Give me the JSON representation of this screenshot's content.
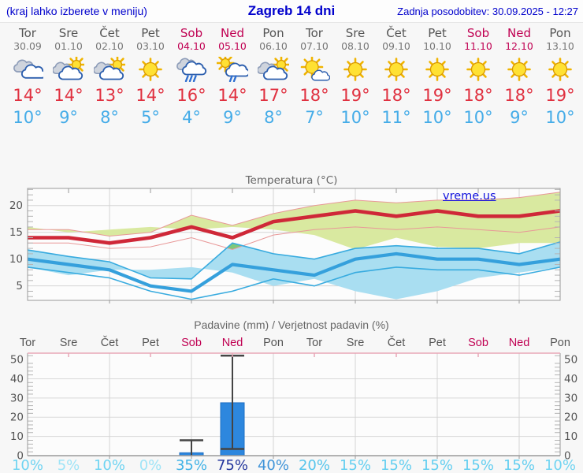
{
  "header": {
    "left_note": "(kraj lahko izberete v meniju)",
    "title": "Zagreb 14 dni",
    "updated": "Zadnja posodobitev: 30.09.2025 - 12:27"
  },
  "colors": {
    "header_blue": "#0000cc",
    "weekday_text": "#555555",
    "date_text": "#777777",
    "weekend_text": "#c00052",
    "tmax_text": "#e03140",
    "tmin_text": "#45ace8",
    "max_line": "#cf2838",
    "max_band": "#d9e9a0",
    "max_band_edge": "#e89898",
    "min_line": "#35a0dc",
    "min_band": "#a9def1",
    "min_band_edge": "#38abdf",
    "band_overlap": "#7cc87c",
    "bar_fill": "#2d87de",
    "bar_edge": "#1d6fc4",
    "whisker": "#444444",
    "grid": "#d4d4d4",
    "axis": "#9a9a9a",
    "precip_top_border": "#e8a6b6",
    "watermark_blue": "#1111dd"
  },
  "strip": {
    "days": [
      {
        "name": "Tor",
        "date": "30.09",
        "weekend": false,
        "icon": "cloudy",
        "tmax": "14°",
        "tmin": "10°"
      },
      {
        "name": "Sre",
        "date": "01.10",
        "weekend": false,
        "icon": "sun-cloud",
        "tmax": "14°",
        "tmin": "9°"
      },
      {
        "name": "Čet",
        "date": "02.10",
        "weekend": false,
        "icon": "sun-cloud",
        "tmax": "13°",
        "tmin": "8°"
      },
      {
        "name": "Pet",
        "date": "03.10",
        "weekend": false,
        "icon": "sunny",
        "tmax": "14°",
        "tmin": "5°"
      },
      {
        "name": "Sob",
        "date": "04.10",
        "weekend": true,
        "icon": "rain",
        "tmax": "16°",
        "tmin": "4°"
      },
      {
        "name": "Ned",
        "date": "05.10",
        "weekend": true,
        "icon": "sun-rain",
        "tmax": "14°",
        "tmin": "9°"
      },
      {
        "name": "Pon",
        "date": "06.10",
        "weekend": false,
        "icon": "sun-cloud",
        "tmax": "17°",
        "tmin": "8°"
      },
      {
        "name": "Tor",
        "date": "07.10",
        "weekend": false,
        "icon": "sun-small-cloud",
        "tmax": "18°",
        "tmin": "7°"
      },
      {
        "name": "Sre",
        "date": "08.10",
        "weekend": false,
        "icon": "sunny",
        "tmax": "19°",
        "tmin": "10°"
      },
      {
        "name": "Čet",
        "date": "09.10",
        "weekend": false,
        "icon": "sunny",
        "tmax": "18°",
        "tmin": "11°"
      },
      {
        "name": "Pet",
        "date": "10.10",
        "weekend": false,
        "icon": "sunny",
        "tmax": "19°",
        "tmin": "10°"
      },
      {
        "name": "Sob",
        "date": "11.10",
        "weekend": true,
        "icon": "sunny",
        "tmax": "18°",
        "tmin": "10°"
      },
      {
        "name": "Ned",
        "date": "12.10",
        "weekend": true,
        "icon": "sunny",
        "tmax": "18°",
        "tmin": "9°"
      },
      {
        "name": "Pon",
        "date": "13.10",
        "weekend": false,
        "icon": "sunny",
        "tmax": "19°",
        "tmin": "10°"
      }
    ]
  },
  "chart_data": [
    {
      "type": "area",
      "title": "Temperatura (°C)",
      "watermark": "vreme.us",
      "x_labels": [
        "Tor",
        "Sre",
        "Čet",
        "Pet",
        "Sob",
        "Ned",
        "Pon",
        "Tor",
        "Sre",
        "Čet",
        "Pet",
        "Sob",
        "Ned",
        "Pon"
      ],
      "ylim": [
        2.3,
        23.2
      ],
      "yticks": [
        5,
        10,
        15,
        20
      ],
      "grid": true,
      "series": [
        {
          "name": "tmax",
          "values": [
            14,
            14,
            13,
            14,
            16,
            14,
            17,
            18,
            19,
            18,
            19,
            18,
            18,
            19
          ]
        },
        {
          "name": "tmax_range_high",
          "values": [
            15.5,
            15.5,
            14.3,
            15,
            18.2,
            16.3,
            18.5,
            20,
            21,
            20.5,
            21,
            21,
            21.5,
            22.5
          ]
        },
        {
          "name": "tmax_range_low",
          "values": [
            13,
            13,
            12,
            12.3,
            14,
            11.8,
            14.5,
            15.5,
            16,
            15.5,
            16,
            15.5,
            15,
            16
          ]
        },
        {
          "name": "tmin",
          "values": [
            10,
            9,
            8,
            5,
            4,
            9,
            8,
            7,
            10,
            11,
            10,
            10,
            9,
            10
          ]
        },
        {
          "name": "tmin_range_high",
          "values": [
            11.7,
            10.5,
            9.5,
            6.5,
            6.3,
            13,
            11,
            10,
            12,
            12.5,
            12,
            12,
            11,
            13.2
          ]
        },
        {
          "name": "tmin_range_low",
          "values": [
            8.5,
            7.5,
            6.5,
            4,
            2.5,
            4,
            6.3,
            5,
            7.5,
            8.5,
            8,
            8,
            7,
            8.5
          ]
        }
      ]
    },
    {
      "type": "bar",
      "title": "Padavine (mm) / Verjetnost padavin (%)",
      "categories": [
        "Tor",
        "Sre",
        "Čet",
        "Pet",
        "Sob",
        "Ned",
        "Pon",
        "Tor",
        "Sre",
        "Čet",
        "Pet",
        "Sob",
        "Ned",
        "Pon"
      ],
      "values": [
        0,
        0,
        0,
        0,
        1.5,
        27.5,
        0,
        0,
        0,
        0,
        0,
        0,
        0,
        0
      ],
      "whisker_low": [
        0,
        0,
        0,
        0,
        0,
        3.5,
        0,
        0,
        0,
        0,
        0,
        0,
        0,
        0
      ],
      "whisker_high": [
        0,
        0,
        0,
        0,
        8,
        52,
        0,
        0,
        0,
        0,
        0,
        0,
        0,
        0
      ],
      "probabilities": [
        "10%",
        "5%",
        "10%",
        "0%",
        "35%",
        "75%",
        "40%",
        "20%",
        "15%",
        "15%",
        "15%",
        "15%",
        "15%",
        "10%"
      ],
      "probability_colors": [
        "#70d4f2",
        "#9fe4f7",
        "#70d4f2",
        "#9fe4f7",
        "#3fb2e6",
        "#23359c",
        "#3e93d8",
        "#55c4ec",
        "#62cef0",
        "#62cef0",
        "#62cef0",
        "#62cef0",
        "#62cef0",
        "#70d4f2"
      ],
      "ylim": [
        0,
        53.3
      ],
      "yticks": [
        0,
        10,
        20,
        30,
        40,
        50
      ],
      "grid": true
    }
  ]
}
